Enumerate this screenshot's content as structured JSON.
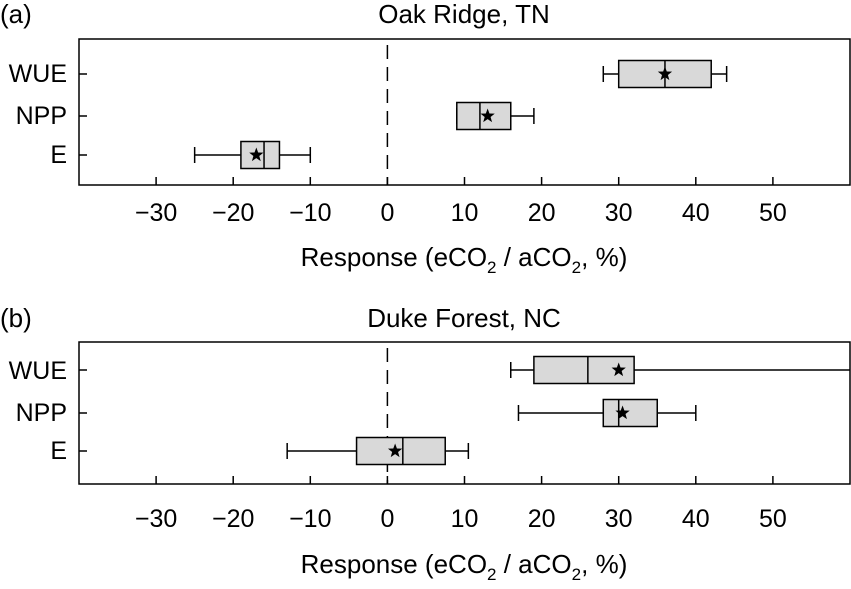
{
  "chart_data": [
    {
      "type": "box",
      "panel_tag": "(a)",
      "title": "Oak Ridge, TN",
      "xlabel_parts": [
        "Response (eCO",
        "2",
        " / aCO",
        "2",
        ", %)"
      ],
      "categories": [
        "WUE",
        "NPP",
        "E"
      ],
      "xlim": [
        -40,
        60
      ],
      "xticks": [
        -30,
        -20,
        -10,
        0,
        10,
        20,
        30,
        40,
        50
      ],
      "xtick_labels": [
        "−30",
        "−20",
        "−10",
        "0",
        "10",
        "20",
        "30",
        "40",
        "50"
      ],
      "reference_line_x": 0,
      "grid": false,
      "boxes": [
        {
          "category": "WUE",
          "whisker_low": 28,
          "q1": 30,
          "median": 36,
          "q3": 42,
          "whisker_high": 44,
          "mean": 36
        },
        {
          "category": "NPP",
          "whisker_low": 9,
          "q1": 9,
          "median": 12,
          "q3": 16,
          "whisker_high": 19,
          "mean": 13
        },
        {
          "category": "E",
          "whisker_low": -25,
          "q1": -19,
          "median": -16,
          "q3": -14,
          "whisker_high": -10,
          "mean": -17
        }
      ],
      "colors": {
        "box_fill": "#d9d9d9",
        "stroke": "#000000"
      }
    },
    {
      "type": "box",
      "panel_tag": "(b)",
      "title": "Duke Forest, NC",
      "xlabel_parts": [
        "Response (eCO",
        "2",
        " / aCO",
        "2",
        ", %)"
      ],
      "categories": [
        "WUE",
        "NPP",
        "E"
      ],
      "xlim": [
        -40,
        60
      ],
      "xticks": [
        -30,
        -20,
        -10,
        0,
        10,
        20,
        30,
        40,
        50
      ],
      "xtick_labels": [
        "−30",
        "−20",
        "−10",
        "0",
        "10",
        "20",
        "30",
        "40",
        "50"
      ],
      "reference_line_x": 0,
      "grid": false,
      "boxes": [
        {
          "category": "WUE",
          "whisker_low": 16,
          "q1": 19,
          "median": 26,
          "q3": 32,
          "whisker_high": 60,
          "mean": 30
        },
        {
          "category": "NPP",
          "whisker_low": 17,
          "q1": 28,
          "median": 30,
          "q3": 35,
          "whisker_high": 40,
          "mean": 30.5
        },
        {
          "category": "E",
          "whisker_low": -13,
          "q1": -4,
          "median": 2,
          "q3": 7.5,
          "whisker_high": 10.5,
          "mean": 1
        }
      ],
      "colors": {
        "box_fill": "#d9d9d9",
        "stroke": "#000000"
      }
    }
  ]
}
